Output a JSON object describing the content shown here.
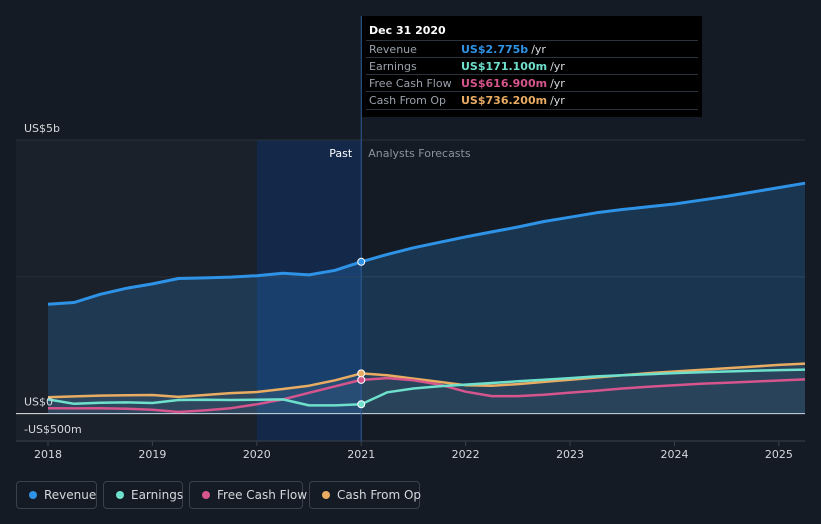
{
  "tooltip": {
    "date": "Dec 31 2020",
    "rows": [
      {
        "label": "Revenue",
        "value": "US$2.775b",
        "unit": "/yr",
        "color": "#2e93e6"
      },
      {
        "label": "Earnings",
        "value": "US$171.100m",
        "unit": "/yr",
        "color": "#6ee0cc"
      },
      {
        "label": "Free Cash Flow",
        "value": "US$616.900m",
        "unit": "/yr",
        "color": "#d6558d"
      },
      {
        "label": "Cash From Op",
        "value": "US$736.200m",
        "unit": "/yr",
        "color": "#e8ac62"
      }
    ]
  },
  "legend": [
    {
      "label": "Revenue",
      "color": "#2e93e6"
    },
    {
      "label": "Earnings",
      "color": "#6ee0cc"
    },
    {
      "label": "Free Cash Flow",
      "color": "#d6558d"
    },
    {
      "label": "Cash From Op",
      "color": "#e8ac62"
    }
  ],
  "chart_data": {
    "type": "line",
    "ylabel_top": "US$5b",
    "ylabel_zero": "US$0",
    "ylabel_bottom": "-US$500m",
    "ylim": [
      -500,
      5000
    ],
    "xlim": [
      2018.0,
      2025.25
    ],
    "divider_x": 2021.0,
    "past_label": "Past",
    "forecast_label": "Analysts Forecasts",
    "x_ticks": [
      "2018",
      "2019",
      "2020",
      "2021",
      "2022",
      "2023",
      "2024",
      "2025"
    ],
    "series": [
      {
        "name": "Revenue",
        "color": "#2e93e6",
        "area": true,
        "marker_x": 2021.0,
        "marker_y": 2775,
        "x": [
          2018.0,
          2018.25,
          2018.5,
          2018.75,
          2019.0,
          2019.25,
          2019.5,
          2019.75,
          2020.0,
          2020.25,
          2020.5,
          2020.75,
          2021.0,
          2021.25,
          2021.5,
          2021.75,
          2022.0,
          2022.25,
          2022.5,
          2022.75,
          2023.0,
          2023.25,
          2023.5,
          2023.75,
          2024.0,
          2024.25,
          2024.5,
          2024.75,
          2025.0,
          2025.25
        ],
        "y": [
          2000,
          2030,
          2180,
          2290,
          2370,
          2470,
          2480,
          2495,
          2520,
          2565,
          2535,
          2620,
          2775,
          2910,
          3030,
          3130,
          3230,
          3320,
          3410,
          3510,
          3590,
          3670,
          3730,
          3780,
          3830,
          3900,
          3970,
          4050,
          4130,
          4210
        ]
      },
      {
        "name": "Earnings",
        "color": "#6ee0cc",
        "marker_x": 2021.0,
        "marker_y": 171.1,
        "x": [
          2018.0,
          2018.25,
          2018.5,
          2018.75,
          2019.0,
          2019.25,
          2019.5,
          2019.75,
          2020.0,
          2020.25,
          2020.5,
          2020.75,
          2021.0,
          2021.25,
          2021.5,
          2021.75,
          2022.0,
          2022.25,
          2022.5,
          2022.75,
          2023.0,
          2023.25,
          2023.5,
          2023.75,
          2024.0,
          2024.25,
          2024.5,
          2024.75,
          2025.0,
          2025.25
        ],
        "y": [
          260,
          180,
          200,
          205,
          195,
          250,
          255,
          250,
          255,
          260,
          150,
          150,
          171,
          390,
          460,
          500,
          530,
          560,
          590,
          620,
          650,
          680,
          700,
          720,
          740,
          755,
          770,
          785,
          795,
          805
        ]
      },
      {
        "name": "Free Cash Flow",
        "color": "#d6558d",
        "marker_x": 2021.0,
        "marker_y": 616.9,
        "x": [
          2018.0,
          2018.25,
          2018.5,
          2018.75,
          2019.0,
          2019.25,
          2019.5,
          2019.75,
          2020.0,
          2020.25,
          2020.5,
          2020.75,
          2021.0,
          2021.25,
          2021.5,
          2021.75,
          2022.0,
          2022.25,
          2022.5,
          2022.75,
          2023.0,
          2023.25,
          2023.5,
          2023.75,
          2024.0,
          2024.25,
          2024.5,
          2024.75,
          2025.0,
          2025.25
        ],
        "y": [
          100,
          95,
          100,
          90,
          70,
          30,
          60,
          100,
          170,
          260,
          380,
          500,
          617,
          650,
          610,
          530,
          400,
          320,
          320,
          345,
          385,
          420,
          460,
          490,
          520,
          545,
          565,
          585,
          605,
          625
        ]
      },
      {
        "name": "Cash From Op",
        "color": "#e8ac62",
        "marker_x": 2021.0,
        "marker_y": 736.2,
        "x": [
          2018.0,
          2018.25,
          2018.5,
          2018.75,
          2019.0,
          2019.25,
          2019.5,
          2019.75,
          2020.0,
          2020.25,
          2020.5,
          2020.75,
          2021.0,
          2021.25,
          2021.5,
          2021.75,
          2022.0,
          2022.25,
          2022.5,
          2022.75,
          2023.0,
          2023.25,
          2023.5,
          2023.75,
          2024.0,
          2024.25,
          2024.5,
          2024.75,
          2025.0,
          2025.25
        ],
        "y": [
          300,
          315,
          330,
          335,
          340,
          305,
          340,
          375,
          395,
          450,
          510,
          610,
          736,
          700,
          640,
          580,
          520,
          510,
          540,
          580,
          620,
          660,
          700,
          740,
          770,
          800,
          830,
          860,
          890,
          915
        ]
      }
    ]
  }
}
